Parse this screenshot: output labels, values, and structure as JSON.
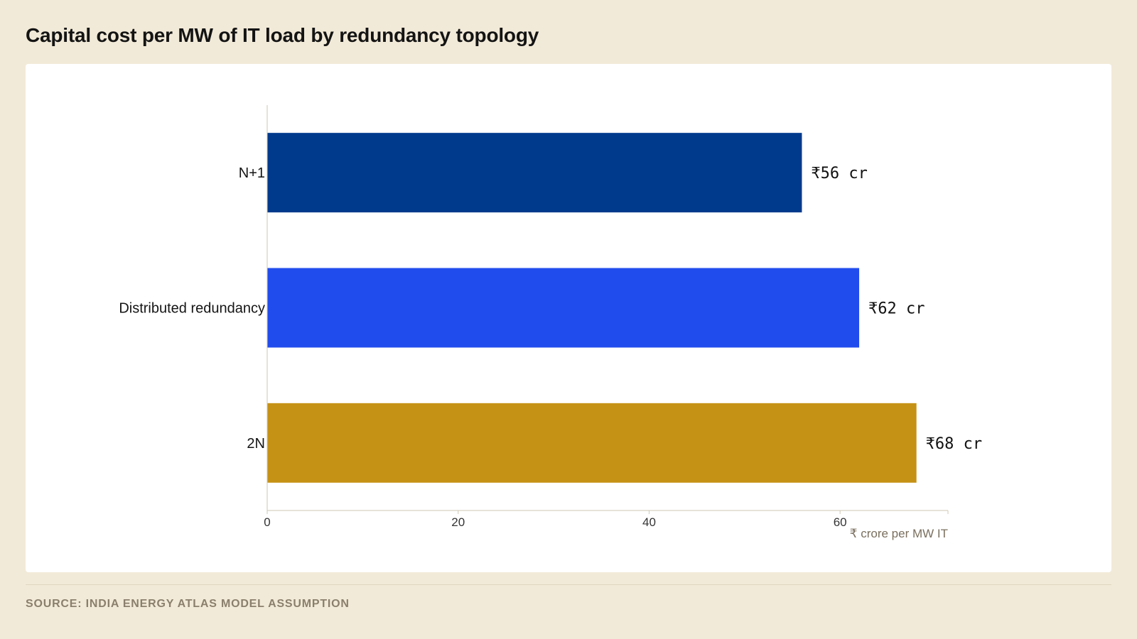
{
  "title": "Capital cost per MW of IT load by redundancy topology",
  "source": "SOURCE: INDIA ENERGY ATLAS MODEL ASSUMPTION",
  "chart_data": {
    "type": "bar",
    "orientation": "horizontal",
    "title": "Capital cost per MW of IT load by redundancy topology",
    "categories": [
      "N+1",
      "Distributed redundancy",
      "2N"
    ],
    "values": [
      56,
      62,
      68
    ],
    "value_labels": [
      "₹56 cr",
      "₹62 cr",
      "₹68 cr"
    ],
    "colors": [
      "#003a8c",
      "#214ced",
      "#c69215"
    ],
    "xlabel": "₹ crore per MW IT",
    "ylabel": "",
    "xlim": [
      0,
      71.3
    ],
    "xticks": [
      0,
      20,
      40,
      60
    ],
    "grid": false,
    "legend": "none"
  }
}
